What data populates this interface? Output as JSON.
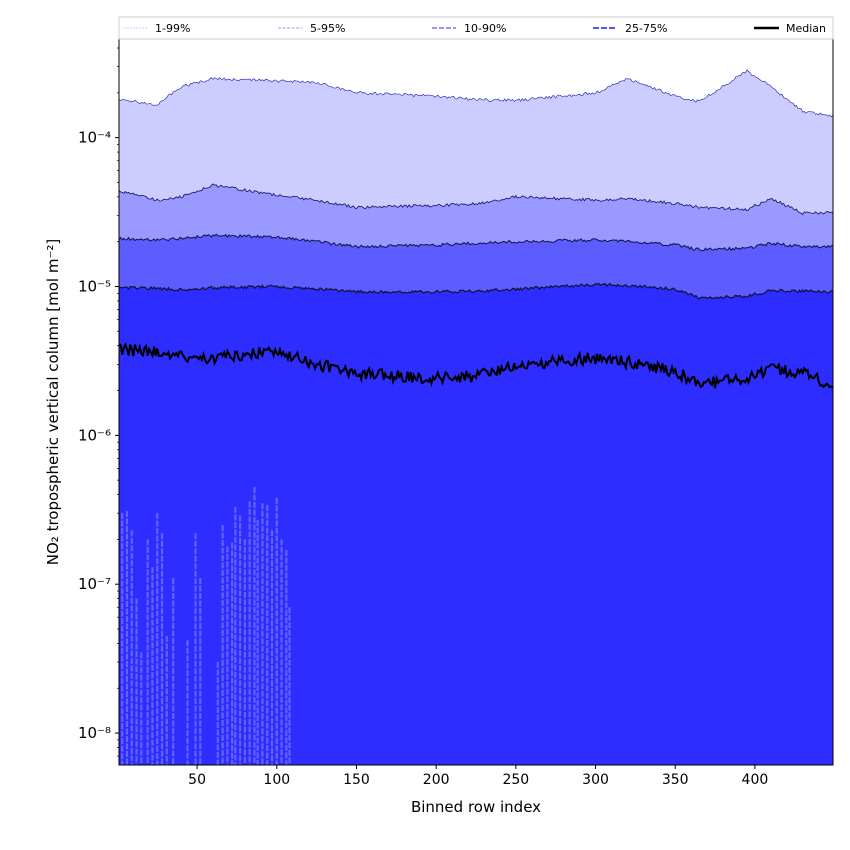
{
  "chart_data": {
    "type": "area",
    "xlabel": "Binned row index",
    "ylabel": "NO₂ tropospheric vertical column [mol m⁻²]",
    "xlim": [
      1,
      449
    ],
    "ylim": [
      6.1e-09,
      0.00046
    ],
    "yscale": "log",
    "xticks": [
      50,
      100,
      150,
      200,
      250,
      300,
      350,
      400
    ],
    "yticks": [
      1e-08,
      1e-07,
      1e-06,
      1e-05,
      0.0001
    ],
    "ytick_labels": [
      "10⁻⁸",
      "10⁻⁷",
      "10⁻⁶",
      "10⁻⁵",
      "10⁻⁴"
    ],
    "legend_position": "top (above plot, single row)",
    "legend": [
      "1-99%",
      "5-95%",
      "10-90%",
      "25-75%",
      "Median"
    ],
    "x": [
      1,
      25,
      40,
      60,
      100,
      125,
      150,
      200,
      225,
      250,
      300,
      320,
      350,
      365,
      395,
      410,
      430,
      448
    ],
    "series": [
      {
        "name": "p99",
        "values": [
          0.00018,
          0.000167,
          0.00022,
          0.00025,
          0.00024,
          0.000235,
          0.0002,
          0.00019,
          0.00018,
          0.000178,
          0.0002,
          0.00025,
          0.00019,
          0.000175,
          0.00028,
          0.00022,
          0.00015,
          0.00014
        ]
      },
      {
        "name": "p95",
        "values": [
          4.4e-05,
          3.8e-05,
          4e-05,
          4.8e-05,
          4.1e-05,
          3.8e-05,
          3.4e-05,
          3.5e-05,
          3.6e-05,
          4e-05,
          3.8e-05,
          3.9e-05,
          3.6e-05,
          3.4e-05,
          3.3e-05,
          3.9e-05,
          3.1e-05,
          3.15e-05
        ]
      },
      {
        "name": "p90",
        "values": [
          2.1e-05,
          2.05e-05,
          2.1e-05,
          2.2e-05,
          2.15e-05,
          2e-05,
          1.85e-05,
          1.9e-05,
          1.95e-05,
          2e-05,
          2.05e-05,
          2e-05,
          1.9e-05,
          1.77e-05,
          1.8e-05,
          1.95e-05,
          1.85e-05,
          1.85e-05
        ]
      },
      {
        "name": "p75",
        "values": [
          9.8e-06,
          9.7e-06,
          9.5e-06,
          9.8e-06,
          1e-05,
          9.6e-06,
          9.2e-06,
          9.2e-06,
          9.3e-06,
          9.6e-06,
          1.03e-05,
          1.02e-05,
          9.6e-06,
          8.4e-06,
          8.6e-06,
          9.4e-06,
          9.3e-06,
          9.2e-06
        ]
      },
      {
        "name": "Median",
        "values": [
          3.8e-06,
          3.6e-06,
          3.4e-06,
          3.3e-06,
          3.7e-06,
          3e-06,
          2.6e-06,
          2.4e-06,
          2.5e-06,
          3e-06,
          3.3e-06,
          3.1e-06,
          2.7e-06,
          2.2e-06,
          2.4e-06,
          2.8e-06,
          2.6e-06,
          2.2e-06
        ]
      }
    ],
    "p1_spikes": {
      "x": [
        3,
        6,
        9,
        12,
        15,
        19,
        22,
        25,
        28,
        31,
        35,
        44,
        49,
        52,
        63,
        66,
        69,
        72,
        74,
        77,
        80,
        83,
        86,
        88,
        91,
        94,
        97,
        100,
        103,
        106,
        108
      ],
      "values": [
        3e-07,
        3.1e-07,
        2.3e-07,
        8e-08,
        3.5e-08,
        2e-07,
        1.3e-07,
        3e-07,
        2.2e-07,
        4.5e-08,
        1.1e-07,
        4.2e-08,
        2.2e-07,
        1.1e-07,
        3e-08,
        2.5e-07,
        1.8e-07,
        1.9e-07,
        3.3e-07,
        2.9e-07,
        2e-07,
        3.6e-07,
        4.5e-07,
        2.7e-07,
        3.5e-07,
        3.4e-07,
        2.3e-07,
        3.8e-07,
        2e-07,
        1.7e-07,
        7e-08
      ]
    },
    "colors": {
      "p99": "#ccccff",
      "p95": "#9999ff",
      "p90": "#5c5cff",
      "p75": "#2d2dff",
      "p1": "#6262ff",
      "median": "#000000"
    }
  }
}
